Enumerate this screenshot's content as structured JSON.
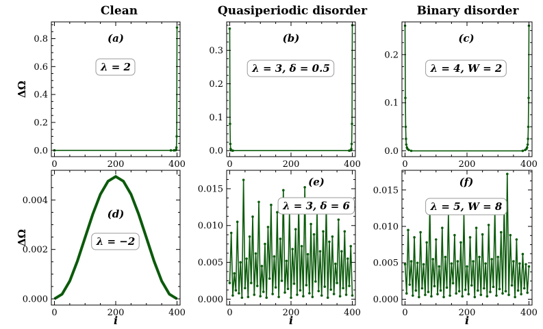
{
  "figure": {
    "column_titles": [
      "Clean",
      "Quasiperiodic disorder",
      "Binary disorder"
    ],
    "colors": {
      "series": "#0b5a0b"
    }
  },
  "chart_data": [
    {
      "id": "a",
      "type": "line",
      "panel_label": "(a)",
      "annotation": "λ = 2",
      "xlim": [
        -10,
        410
      ],
      "ylim": [
        -0.045,
        0.92
      ],
      "xticks": [
        0,
        200,
        400
      ],
      "xtick_labels": [
        "0",
        "200",
        "400"
      ],
      "yticks": [
        0,
        0.2,
        0.4,
        0.6,
        0.8
      ],
      "ytick_labels": [
        "0.0",
        "0.2",
        "0.4",
        "0.6",
        "0.8"
      ],
      "ylabel": "ΔΩ",
      "xlabel": "",
      "series": [
        {
          "name": "ΔΩ",
          "x": [
            0,
            380,
            390,
            395,
            397,
            398,
            399,
            400
          ],
          "y": [
            0,
            0,
            0,
            0.001,
            0.005,
            0.02,
            0.1,
            0.88
          ]
        }
      ]
    },
    {
      "id": "b",
      "type": "line",
      "panel_label": "(b)",
      "annotation": "λ = 3, δ = 0.5",
      "xlim": [
        -10,
        410
      ],
      "ylim": [
        -0.018,
        0.385
      ],
      "xticks": [
        0,
        200,
        400
      ],
      "xtick_labels": [
        "0",
        "200",
        "400"
      ],
      "yticks": [
        0,
        0.1,
        0.2,
        0.3
      ],
      "ytick_labels": [
        "0.0",
        "0.1",
        "0.2",
        "0.3"
      ],
      "ylabel": "",
      "xlabel": "",
      "series": [
        {
          "name": "ΔΩ",
          "x": [
            0,
            1,
            2,
            3,
            5,
            10,
            390,
            395,
            397,
            398,
            399,
            400
          ],
          "y": [
            0.365,
            0.08,
            0.02,
            0.005,
            0.001,
            0,
            0,
            0.001,
            0.005,
            0.02,
            0.08,
            0.375
          ]
        }
      ]
    },
    {
      "id": "c",
      "type": "line",
      "panel_label": "(c)",
      "annotation": "λ = 4, W = 2",
      "xlim": [
        -10,
        410
      ],
      "ylim": [
        -0.012,
        0.268
      ],
      "xticks": [
        0,
        200,
        400
      ],
      "xtick_labels": [
        "0",
        "200",
        "400"
      ],
      "yticks": [
        0,
        0.1,
        0.2
      ],
      "ytick_labels": [
        "0.0",
        "0.1",
        "0.2"
      ],
      "ylabel": "",
      "xlabel": "",
      "series": [
        {
          "name": "ΔΩ",
          "x": [
            0,
            1,
            2,
            3,
            4,
            6,
            8,
            12,
            20,
            380,
            388,
            392,
            394,
            396,
            397,
            398,
            399,
            400
          ],
          "y": [
            0.26,
            0.11,
            0.05,
            0.025,
            0.013,
            0.007,
            0.004,
            0.002,
            0,
            0,
            0.002,
            0.004,
            0.007,
            0.013,
            0.025,
            0.05,
            0.11,
            0.26
          ]
        }
      ]
    },
    {
      "id": "d",
      "type": "line",
      "panel_label": "(d)",
      "annotation": "λ = −2",
      "xlim": [
        -10,
        410
      ],
      "ylim": [
        -0.00025,
        0.0052
      ],
      "xticks": [
        0,
        200,
        400
      ],
      "xtick_labels": [
        "0",
        "200",
        "400"
      ],
      "yticks": [
        0,
        0.002,
        0.004
      ],
      "ytick_labels": [
        "0.000",
        "0.002",
        "0.004"
      ],
      "ylabel": "ΔΩ",
      "xlabel": "i",
      "series": [
        {
          "name": "ΔΩ",
          "x": [
            0,
            25,
            50,
            75,
            100,
            125,
            150,
            175,
            200,
            225,
            250,
            275,
            300,
            325,
            350,
            375,
            400
          ],
          "y": [
            0,
            0.00019,
            0.00072,
            0.00153,
            0.00248,
            0.00342,
            0.00423,
            0.00476,
            0.00495,
            0.00476,
            0.00423,
            0.00342,
            0.00248,
            0.00153,
            0.00072,
            0.00019,
            0
          ]
        }
      ]
    },
    {
      "id": "e",
      "type": "line",
      "panel_label": "(e)",
      "annotation": "λ = 3, δ = 6",
      "xlim": [
        -10,
        410
      ],
      "ylim": [
        -0.0008,
        0.0175
      ],
      "xticks": [
        0,
        200,
        400
      ],
      "xtick_labels": [
        "0",
        "200",
        "400"
      ],
      "yticks": [
        0,
        0.005,
        0.01,
        0.015
      ],
      "ytick_labels": [
        "0.000",
        "0.005",
        "0.010",
        "0.015"
      ],
      "ylabel": "",
      "xlabel": "i",
      "series": [
        {
          "name": "ΔΩ",
          "x": [
            0,
            5,
            10,
            15,
            20,
            25,
            30,
            35,
            40,
            45,
            50,
            55,
            60,
            65,
            70,
            75,
            80,
            85,
            90,
            95,
            100,
            105,
            110,
            115,
            120,
            125,
            130,
            135,
            140,
            145,
            150,
            155,
            160,
            165,
            170,
            175,
            180,
            185,
            190,
            195,
            200,
            205,
            210,
            215,
            220,
            225,
            230,
            235,
            240,
            245,
            250,
            255,
            260,
            265,
            270,
            275,
            280,
            285,
            290,
            295,
            300,
            305,
            310,
            315,
            320,
            325,
            330,
            335,
            340,
            345,
            350,
            355,
            360,
            365,
            370,
            375,
            380,
            385,
            390,
            395,
            400
          ],
          "y": [
            0.0022,
            0.009,
            0.0005,
            0.0035,
            0.0012,
            0.0105,
            0.0008,
            0.005,
            0.0002,
            0.0162,
            0.0015,
            0.0055,
            0.0003,
            0.0085,
            0.0022,
            0.0112,
            0.0006,
            0.0062,
            0.0018,
            0.0132,
            0.0004,
            0.0045,
            0.001,
            0.0075,
            0.0002,
            0.0098,
            0.0028,
            0.0128,
            0.0007,
            0.0058,
            0.0016,
            0.0118,
            0.0003,
            0.0082,
            0.0025,
            0.0148,
            0.0009,
            0.0052,
            0.0014,
            0.0122,
            0.0002,
            0.0068,
            0.0021,
            0.0095,
            0.0006,
            0.0128,
            0.0012,
            0.0072,
            0.0004,
            0.0152,
            0.0019,
            0.0061,
            0.0008,
            0.0102,
            0.0003,
            0.0088,
            0.0024,
            0.0118,
            0.0011,
            0.0065,
            0.0005,
            0.0092,
            0.0017,
            0.0128,
            0.0002,
            0.0078,
            0.0013,
            0.0085,
            0.0007,
            0.0048,
            0.0022,
            0.0108,
            0.0004,
            0.0065,
            0.0015,
            0.0092,
            0.0006,
            0.0055,
            0.0018,
            0.0072,
            0.0005
          ]
        }
      ]
    },
    {
      "id": "f",
      "type": "line",
      "panel_label": "(f)",
      "annotation": "λ = 5, W = 8",
      "xlim": [
        -10,
        410
      ],
      "ylim": [
        -0.0008,
        0.0177
      ],
      "xticks": [
        0,
        200,
        400
      ],
      "xtick_labels": [
        "0",
        "200",
        "400"
      ],
      "yticks": [
        0,
        0.005,
        0.01,
        0.015
      ],
      "ytick_labels": [
        "0.000",
        "0.005",
        "0.010",
        "0.015"
      ],
      "ylabel": "",
      "xlabel": "i",
      "series": [
        {
          "name": "ΔΩ",
          "x": [
            0,
            5,
            10,
            15,
            20,
            25,
            30,
            35,
            40,
            45,
            50,
            55,
            60,
            65,
            70,
            75,
            80,
            85,
            90,
            95,
            100,
            105,
            110,
            115,
            120,
            125,
            130,
            135,
            140,
            145,
            150,
            155,
            160,
            165,
            170,
            175,
            180,
            185,
            190,
            195,
            200,
            205,
            210,
            215,
            220,
            225,
            230,
            235,
            240,
            245,
            250,
            255,
            260,
            265,
            270,
            275,
            280,
            285,
            290,
            295,
            300,
            305,
            310,
            315,
            320,
            325,
            330,
            335,
            340,
            345,
            350,
            355,
            360,
            365,
            370,
            375,
            380,
            385,
            390,
            395,
            400
          ],
          "y": [
            0.0048,
            0.0008,
            0.0095,
            0.002,
            0.0052,
            0.0005,
            0.0085,
            0.0012,
            0.005,
            0.0003,
            0.0092,
            0.0015,
            0.0048,
            0.0006,
            0.0078,
            0.001,
            0.0128,
            0.0004,
            0.0055,
            0.0018,
            0.0082,
            0.0007,
            0.0045,
            0.0012,
            0.0098,
            0.0003,
            0.0058,
            0.0016,
            0.0118,
            0.0005,
            0.0049,
            0.0022,
            0.0088,
            0.0008,
            0.0052,
            0.0011,
            0.0078,
            0.0004,
            0.0118,
            0.0013,
            0.0045,
            0.0007,
            0.0085,
            0.0019,
            0.0052,
            0.0003,
            0.0098,
            0.0012,
            0.0058,
            0.0006,
            0.0089,
            0.0015,
            0.0049,
            0.0004,
            0.0102,
            0.001,
            0.0055,
            0.0017,
            0.0122,
            0.0005,
            0.0058,
            0.0014,
            0.0092,
            0.0008,
            0.0128,
            0.0011,
            0.0172,
            0.0006,
            0.0088,
            0.0019,
            0.0052,
            0.0003,
            0.0082,
            0.0012,
            0.0049,
            0.0007,
            0.0062,
            0.0015,
            0.0048,
            0.0009,
            0.0045
          ]
        }
      ]
    }
  ]
}
